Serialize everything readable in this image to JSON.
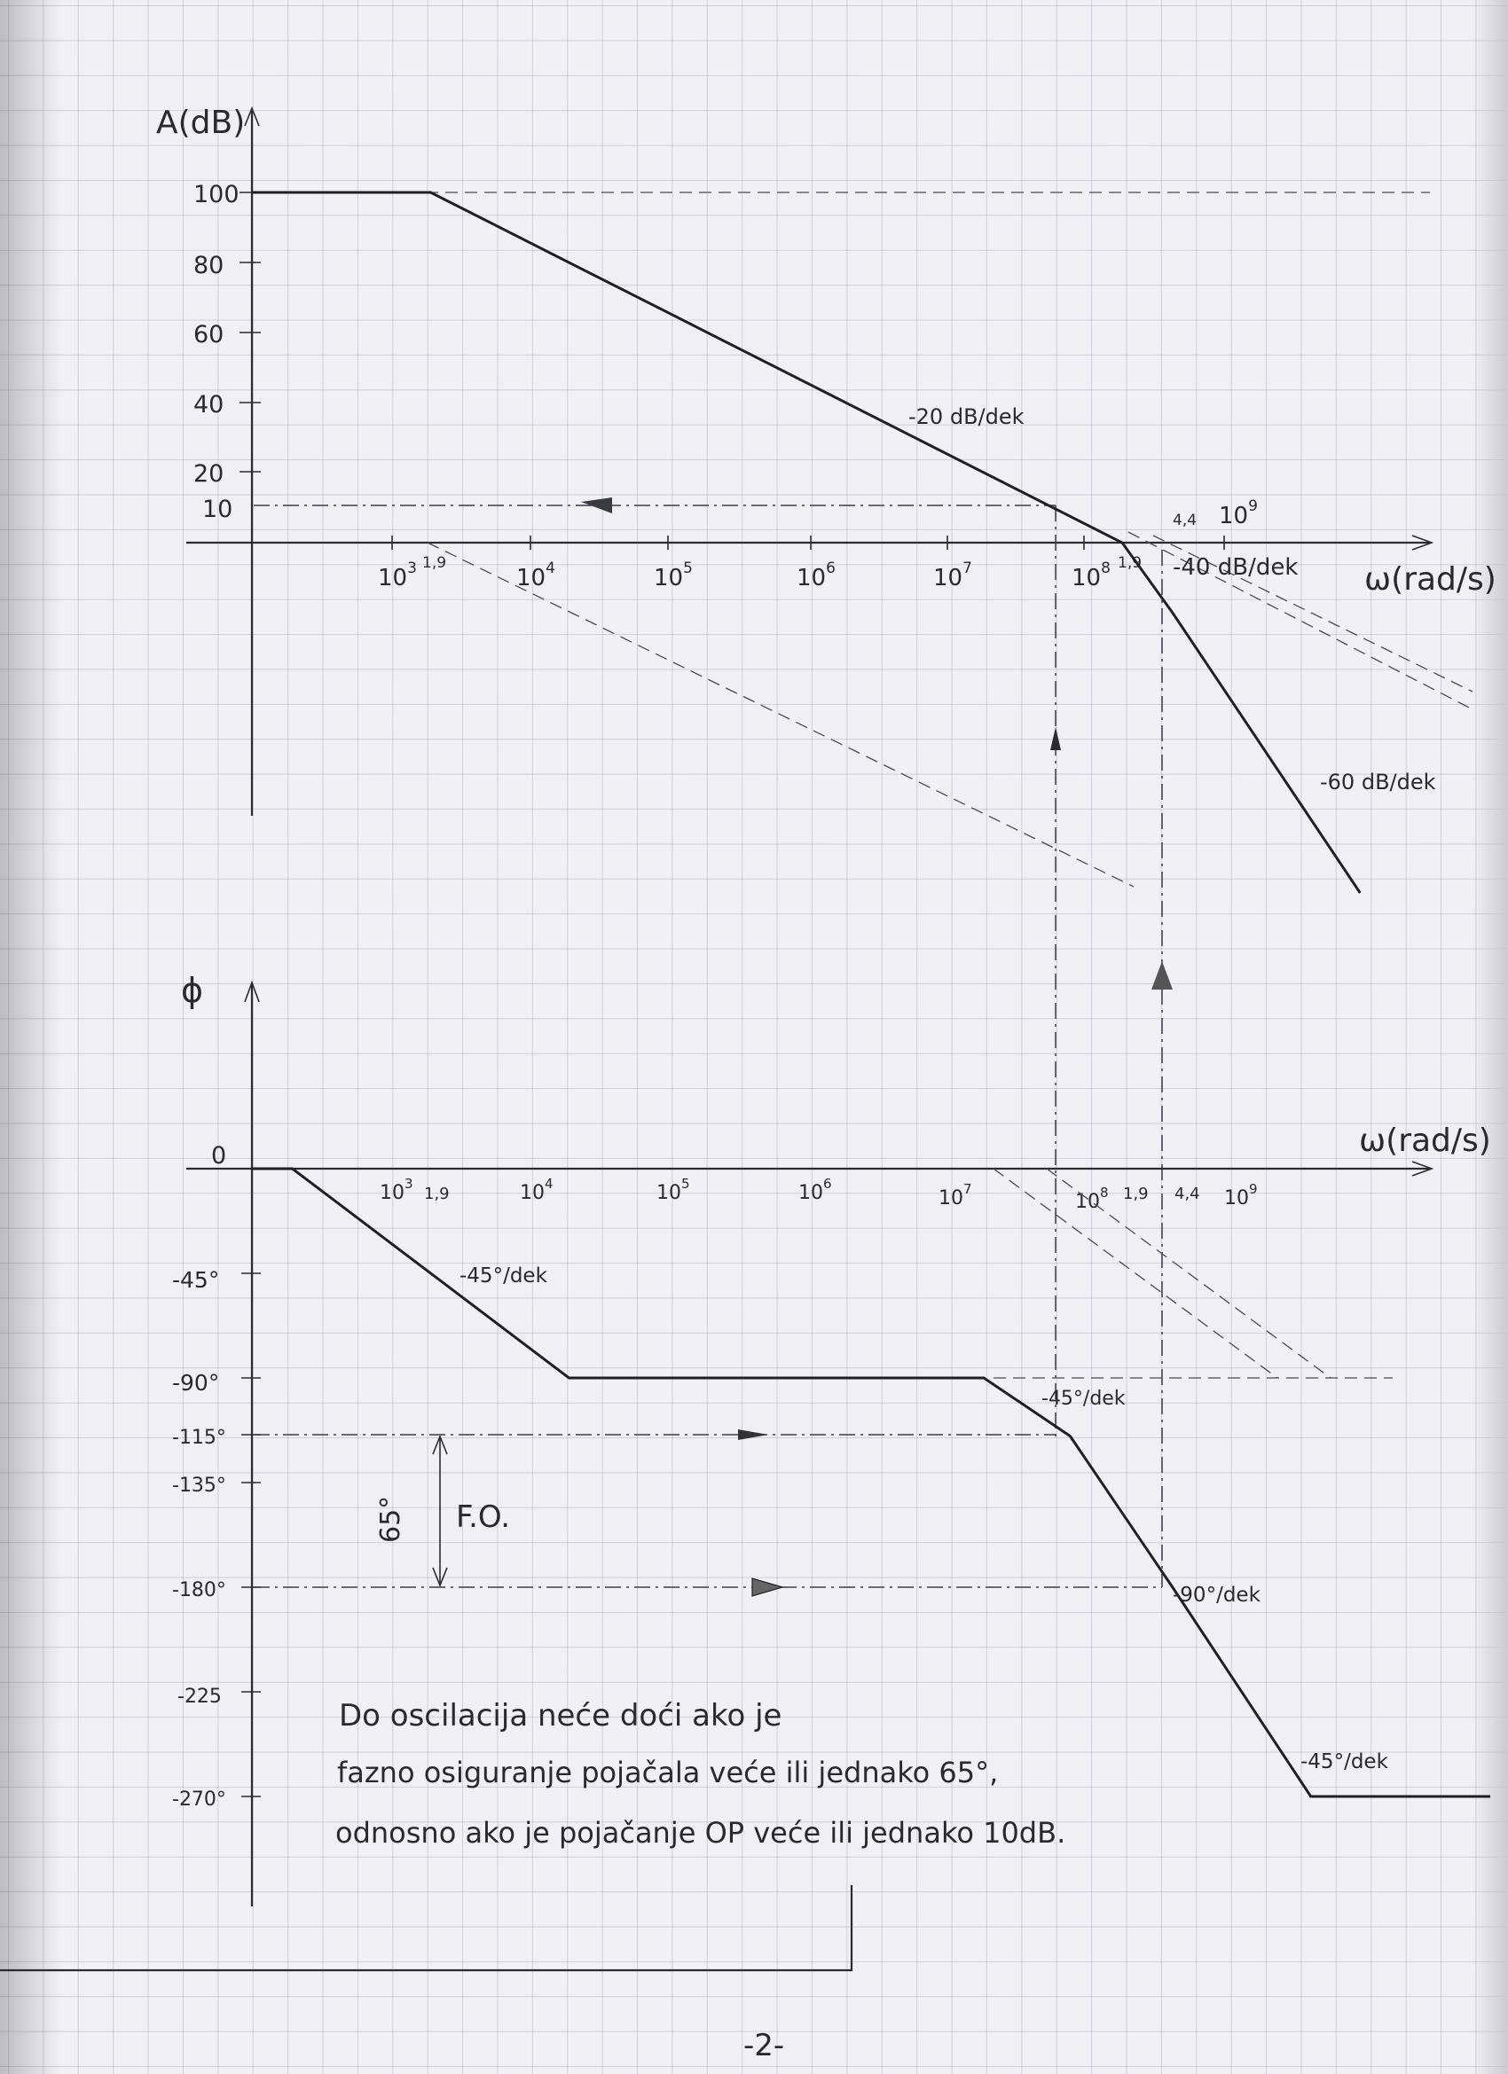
{
  "chart_data": [
    {
      "type": "line",
      "y_axis_label": "A(dB)",
      "x_axis_label": "ω(rad/s)",
      "y_ticks": [
        "100",
        "80",
        "60",
        "40",
        "20",
        "10"
      ],
      "x_ticks": [
        {
          "exp": "10",
          "sup": "3",
          "extra": "1,9"
        },
        {
          "exp": "10",
          "sup": "4"
        },
        {
          "exp": "10",
          "sup": "5"
        },
        {
          "exp": "10",
          "sup": "6"
        },
        {
          "exp": "10",
          "sup": "7"
        },
        {
          "exp": "10",
          "sup": "8",
          "extra": "1,9"
        },
        {
          "exp": "10",
          "sup": "9",
          "above": "4,4"
        }
      ],
      "series": [
        {
          "points": [
            [
              1,
              100
            ],
            [
              1900,
              100
            ],
            [
              190000000,
              0
            ],
            [
              440000000,
              -20
            ],
            [
              10000000000,
              -100
            ]
          ]
        }
      ],
      "annotations": [
        "-20 dB/dek",
        "-40 dB/dek",
        "-60 dB/dek"
      ]
    },
    {
      "type": "line",
      "y_axis_label": "ϕ",
      "x_axis_label": "ω(rad/s)",
      "y_ticks": [
        "0",
        "-45°",
        "-90°",
        "-115°",
        "-135°",
        "-180°",
        "-225",
        "-270°"
      ],
      "x_ticks": [
        {
          "exp": "10",
          "sup": "3",
          "extra": "1,9"
        },
        {
          "exp": "10",
          "sup": "4"
        },
        {
          "exp": "10",
          "sup": "5"
        },
        {
          "exp": "10",
          "sup": "6"
        },
        {
          "exp": "10",
          "sup": "7"
        },
        {
          "exp": "10",
          "sup": "8",
          "extra": "1,9"
        },
        {
          "exp": "10",
          "sup": "9",
          "above": "4,4"
        }
      ],
      "series": [
        {
          "points": [
            [
              190,
              0
            ],
            [
              19000,
              -90
            ],
            [
              19000000,
              -90
            ],
            [
              80000000,
              -115
            ],
            [
              440000000,
              -180
            ],
            [
              4400000000,
              -270
            ]
          ]
        }
      ],
      "annotations": [
        "-45°/dek",
        "-45°/dek",
        "-90°/dek",
        "-45°/dek",
        "65°",
        "F.O."
      ]
    }
  ],
  "note_lines": [
    "Do oscilacija neće doći ako je",
    "fazno osiguranje pojačala veće ili jednako 65°,",
    "odnosno ako je pojačanje OP veće ili jednako 10dB."
  ],
  "page_number": "-2-"
}
